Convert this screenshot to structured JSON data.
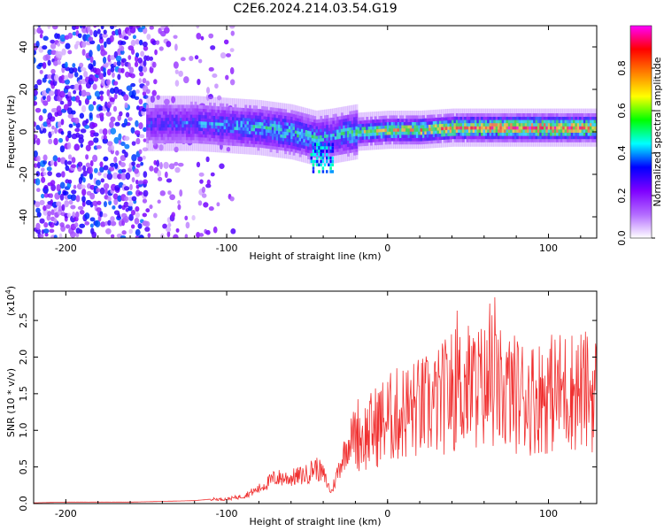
{
  "title": "C2E6.2024.214.03.54.G19",
  "chart_data": [
    {
      "type": "heatmap",
      "xlabel": "Height of straight line (km)",
      "ylabel": "Frequency (Hz)",
      "xlim": [
        -220,
        130
      ],
      "ylim": [
        -50,
        50
      ],
      "xticks": [
        -200,
        -100,
        0,
        100
      ],
      "yticks": [
        -40,
        -20,
        0,
        20,
        40
      ],
      "colorbar": {
        "label": "Normalized spectral amplitude",
        "range": [
          0,
          1
        ],
        "ticks": [
          0.0,
          0.2,
          0.4,
          0.6,
          0.8
        ],
        "colormap": [
          "#ffffff",
          "#b36bff",
          "#7f00ff",
          "#0000ff",
          "#00ffff",
          "#00ff00",
          "#ffff00",
          "#ff7f00",
          "#ff0000",
          "#ff00ff"
        ]
      },
      "ridge": {
        "description": "dominant spectral ridge center frequency (Hz) vs height (km)",
        "x": [
          -150,
          -120,
          -100,
          -80,
          -60,
          -45,
          -35,
          -20,
          0,
          20,
          40,
          60,
          80,
          100,
          125
        ],
        "y": [
          4,
          4,
          3,
          2,
          0,
          -3,
          -2,
          0,
          1,
          1,
          2,
          2,
          2,
          2,
          2
        ],
        "amplitude": [
          0.35,
          0.4,
          0.45,
          0.5,
          0.55,
          0.5,
          0.45,
          0.6,
          0.7,
          0.75,
          0.8,
          0.85,
          0.9,
          0.9,
          0.85
        ]
      }
    },
    {
      "type": "line",
      "xlabel": "Height of straight line (km)",
      "ylabel": "SNR (10 * v/v)",
      "yscale_label": "(x10^4)",
      "xlim": [
        -220,
        130
      ],
      "ylim": [
        0,
        2.9
      ],
      "xticks": [
        -200,
        -100,
        0,
        100
      ],
      "yticks": [
        0.0,
        0.5,
        1.0,
        1.5,
        2.0,
        2.5
      ],
      "color": "#f03030",
      "series": [
        {
          "x": [
            -220,
            -200,
            -180,
            -160,
            -140,
            -120,
            -110,
            -100,
            -90,
            -80,
            -70,
            -60,
            -50,
            -45,
            -40,
            -35,
            -30,
            -25,
            -20,
            -15,
            -10,
            -5,
            0,
            10,
            20,
            30,
            40,
            50,
            60,
            70,
            80,
            90,
            100,
            110,
            120,
            130
          ],
          "values": [
            0.01,
            0.02,
            0.02,
            0.02,
            0.03,
            0.04,
            0.06,
            0.06,
            0.1,
            0.2,
            0.35,
            0.35,
            0.4,
            0.5,
            0.4,
            0.15,
            0.5,
            0.8,
            1.0,
            0.9,
            1.0,
            1.1,
            1.15,
            1.25,
            1.3,
            1.35,
            1.55,
            1.6,
            1.6,
            1.55,
            1.5,
            1.45,
            1.5,
            1.55,
            1.55,
            1.5
          ]
        }
      ]
    }
  ]
}
